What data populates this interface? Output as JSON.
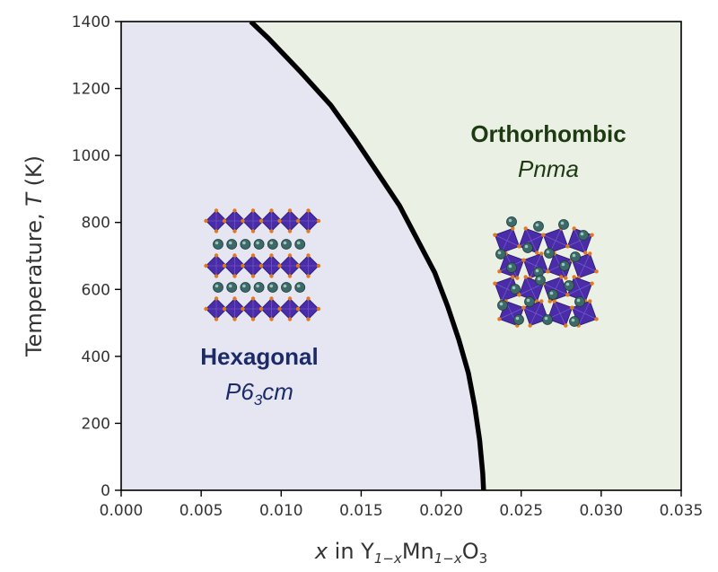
{
  "chart_data": {
    "type": "line",
    "title": "",
    "xlabel": {
      "var": "x",
      "prefix": " in Y",
      "sub1": "1−x",
      "mid": "Mn",
      "sub2": "1−x",
      "suffix": "O",
      "sub3": "3"
    },
    "ylabel": {
      "prefix": "Temperature,  ",
      "var": "T",
      "suffix": " (K)"
    },
    "xlim": [
      0.0,
      0.035
    ],
    "ylim": [
      0,
      1400
    ],
    "xticks": [
      "0.000",
      "0.005",
      "0.010",
      "0.015",
      "0.020",
      "0.025",
      "0.030",
      "0.035"
    ],
    "yticks": [
      "0",
      "200",
      "400",
      "600",
      "800",
      "1000",
      "1200",
      "1400"
    ],
    "grid": false,
    "legend": "none",
    "series": [
      {
        "x": [
          0.02265,
          0.0226,
          0.0224,
          0.0221,
          0.0217,
          0.0211,
          0.0204,
          0.0196,
          0.0185,
          0.0174,
          0.016,
          0.0146,
          0.0131,
          0.0112,
          0.0092,
          0.0081
        ],
        "y": [
          0,
          50,
          150,
          250,
          350,
          450,
          550,
          650,
          750,
          850,
          950,
          1050,
          1150,
          1250,
          1350,
          1400
        ],
        "color": "#000000"
      }
    ],
    "regions": [
      {
        "title": "Hexagonal",
        "sub_main": "P6",
        "sub_sub": "3",
        "sub_tail": "cm",
        "fill": "#e5e6f2",
        "text_color": "#1c2a68"
      },
      {
        "title": "Orthorhombic",
        "sub_main": "Pnma",
        "fill": "#eaf1e4",
        "text_color": "#1d3a12"
      }
    ]
  },
  "colors": {
    "octahedra": "#4a2ca8",
    "oxygen": "#e07a1e",
    "yttrium": "#3c6a68"
  },
  "icons": {
    "hexagonal_structure": "hexagonal-crystal-structure-icon",
    "orthorhombic_structure": "orthorhombic-crystal-structure-icon"
  }
}
